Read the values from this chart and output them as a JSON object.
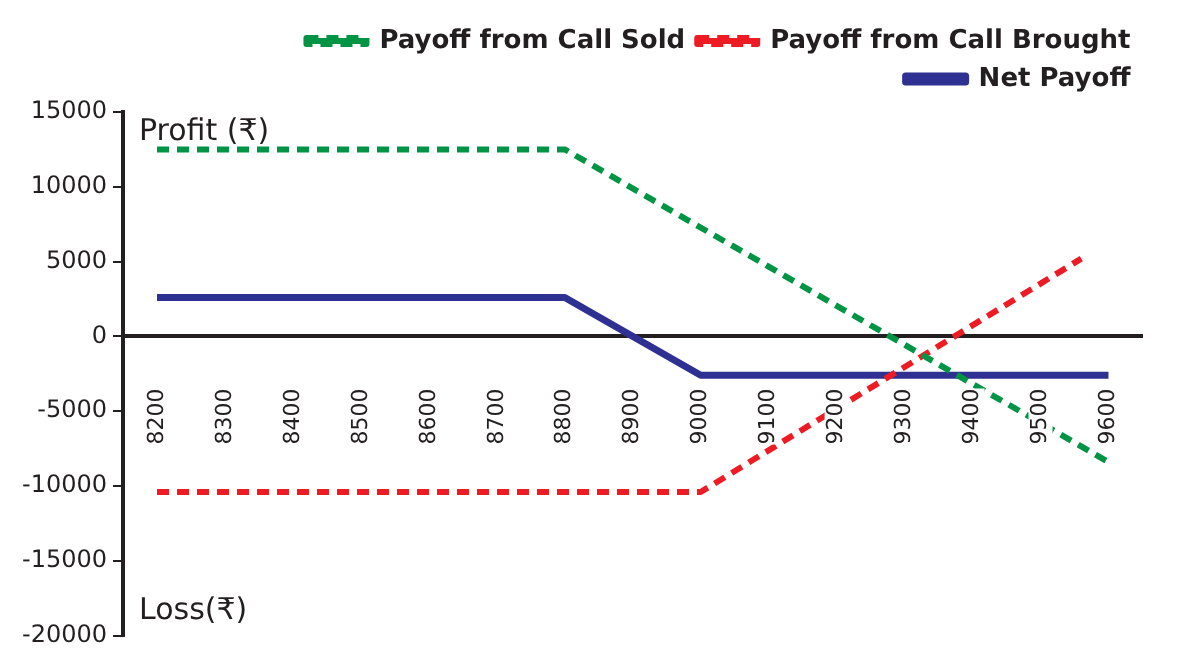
{
  "chart_data": {
    "type": "line",
    "annotations": [
      "Profit (₹)",
      "Loss(₹)"
    ],
    "xlim": [
      8150,
      9650
    ],
    "xticks": [
      8200,
      8300,
      8400,
      8500,
      8600,
      8700,
      8800,
      8900,
      9000,
      9100,
      9200,
      9300,
      9400,
      9500,
      9600
    ],
    "ylim": [
      -20000,
      15000
    ],
    "yticks": [
      -20000,
      -15000,
      -10000,
      -5000,
      0,
      5000,
      10000,
      15000
    ],
    "grid": false,
    "legend": "top right",
    "marker": "none",
    "series": [
      {
        "name": "Payoff from Call Sold",
        "color": "#009444",
        "line_style": "dashed",
        "x": [
          8200,
          8800,
          9600
        ],
        "values": [
          12500,
          12500,
          -8400
        ]
      },
      {
        "name": "Payoff from Call Brought",
        "color": "#ed1c24",
        "line_style": "dashed",
        "x": [
          8200,
          9000,
          9560
        ],
        "values": [
          -10400,
          -10400,
          5200
        ]
      },
      {
        "name": "Net Payoff",
        "color": "#2e3192",
        "line_style": "solid",
        "x": [
          8200,
          8800,
          9000,
          9600
        ],
        "values": [
          2600,
          2600,
          -2600,
          -2600
        ]
      }
    ]
  }
}
